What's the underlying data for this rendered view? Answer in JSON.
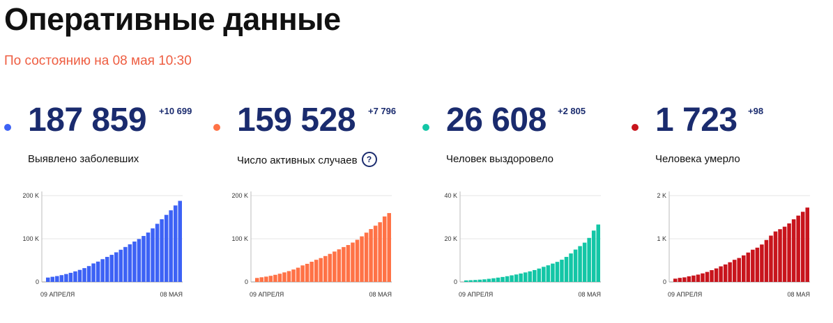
{
  "header": {
    "title": "Оперативные данные",
    "subtitle": "По состоянию на 08 мая 10:30"
  },
  "cards": [
    {
      "value": "187 859",
      "delta": "+10 699",
      "label": "Выявлено заболевших",
      "color": "#3d62f5",
      "help": ""
    },
    {
      "value": "159 528",
      "delta": "+7 796",
      "label": "Число активных случаев",
      "color": "#ff7246",
      "help": "?"
    },
    {
      "value": "26 608",
      "delta": "+2 805",
      "label": "Человек выздоровело",
      "color": "#13c6a6",
      "help": ""
    },
    {
      "value": "1 723",
      "delta": "+98",
      "label": "Человека умерло",
      "color": "#c8141c",
      "help": ""
    }
  ],
  "chart_data": [
    {
      "type": "bar",
      "x_start_label": "09 АПРЕЛЯ",
      "x_end_label": "08 МАЯ",
      "ylim": [
        0,
        200000
      ],
      "yticks": [
        {
          "value": 0,
          "label": "0"
        },
        {
          "value": 100000,
          "label": "100 K"
        },
        {
          "value": 200000,
          "label": "200 K"
        }
      ],
      "color": "#3d62f5",
      "values": [
        10131,
        11917,
        13584,
        15770,
        18328,
        21102,
        24490,
        27938,
        32008,
        36793,
        42853,
        47121,
        52763,
        57999,
        62773,
        68622,
        74588,
        80949,
        87147,
        93558,
        99399,
        106498,
        114431,
        124054,
        134687,
        145268,
        155370,
        165929,
        177160,
        187859
      ]
    },
    {
      "type": "bar",
      "x_start_label": "09 АПРЕЛЯ",
      "x_end_label": "08 МАЯ",
      "ylim": [
        0,
        200000
      ],
      "yticks": [
        {
          "value": 0,
          "label": "0"
        },
        {
          "value": 100000,
          "label": "100 K"
        },
        {
          "value": 200000,
          "label": "200 K"
        }
      ],
      "color": "#ff7246",
      "values": [
        9200,
        10800,
        12300,
        14200,
        16500,
        19000,
        22100,
        25100,
        28800,
        33000,
        38300,
        42000,
        46800,
        51300,
        55300,
        60000,
        65000,
        70400,
        75500,
        80800,
        85500,
        91200,
        97700,
        105600,
        114200,
        122500,
        130300,
        138300,
        151700,
        159528
      ]
    },
    {
      "type": "bar",
      "x_start_label": "09 АПРЕЛЯ",
      "x_end_label": "08 МАЯ",
      "ylim": [
        0,
        40000
      ],
      "yticks": [
        {
          "value": 0,
          "label": "0"
        },
        {
          "value": 20000,
          "label": "20 K"
        },
        {
          "value": 40000,
          "label": "40 K"
        }
      ],
      "color": "#13c6a6",
      "values": [
        700,
        800,
        900,
        1050,
        1200,
        1450,
        1700,
        2000,
        2300,
        2650,
        3050,
        3450,
        3900,
        4400,
        4900,
        5500,
        6200,
        7000,
        7700,
        8500,
        9300,
        10300,
        11600,
        13200,
        15000,
        16600,
        18200,
        20400,
        23800,
        26608
      ]
    },
    {
      "type": "bar",
      "x_start_label": "09 АПРЕЛЯ",
      "x_end_label": "08 МАЯ",
      "ylim": [
        0,
        2000
      ],
      "yticks": [
        {
          "value": 0,
          "label": "0"
        },
        {
          "value": 1000,
          "label": "1 K"
        },
        {
          "value": 2000,
          "label": "2 K"
        }
      ],
      "color": "#c8141c",
      "values": [
        76,
        94,
        106,
        130,
        148,
        170,
        198,
        232,
        273,
        313,
        361,
        405,
        456,
        513,
        555,
        615,
        681,
        747,
        794,
        867,
        972,
        1073,
        1169,
        1222,
        1280,
        1356,
        1451,
        1537,
        1625,
        1723
      ]
    }
  ]
}
